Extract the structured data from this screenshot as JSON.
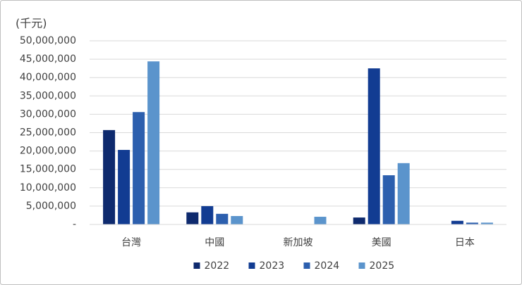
{
  "chart_data": {
    "type": "bar",
    "y_label": "(千元)",
    "categories": [
      "台灣",
      "中國",
      "新加坡",
      "美國",
      "日本"
    ],
    "series": [
      {
        "name": "2022",
        "color": "#0e2a6e",
        "values": [
          25700000,
          3300000,
          0,
          1900000,
          0
        ]
      },
      {
        "name": "2023",
        "color": "#123c92",
        "values": [
          20300000,
          5000000,
          0,
          42500000,
          1000000
        ]
      },
      {
        "name": "2024",
        "color": "#2c5fae",
        "values": [
          30600000,
          2900000,
          0,
          13400000,
          500000
        ]
      },
      {
        "name": "2025",
        "color": "#5b94cc",
        "values": [
          44400000,
          2300000,
          2100000,
          16700000,
          500000
        ]
      }
    ],
    "ylim": [
      0,
      50000000
    ],
    "yticks": [
      {
        "value": 0,
        "label": "-"
      },
      {
        "value": 5000000,
        "label": "5,000,000"
      },
      {
        "value": 10000000,
        "label": "10,000,000"
      },
      {
        "value": 15000000,
        "label": "15,000,000"
      },
      {
        "value": 20000000,
        "label": "20,000,000"
      },
      {
        "value": 25000000,
        "label": "25,000,000"
      },
      {
        "value": 30000000,
        "label": "30,000,000"
      },
      {
        "value": 35000000,
        "label": "35,000,000"
      },
      {
        "value": 40000000,
        "label": "40,000,000"
      },
      {
        "value": 45000000,
        "label": "45,000,000"
      },
      {
        "value": 50000000,
        "label": "50,000,000"
      }
    ],
    "grid": true,
    "legend": "bottom"
  }
}
